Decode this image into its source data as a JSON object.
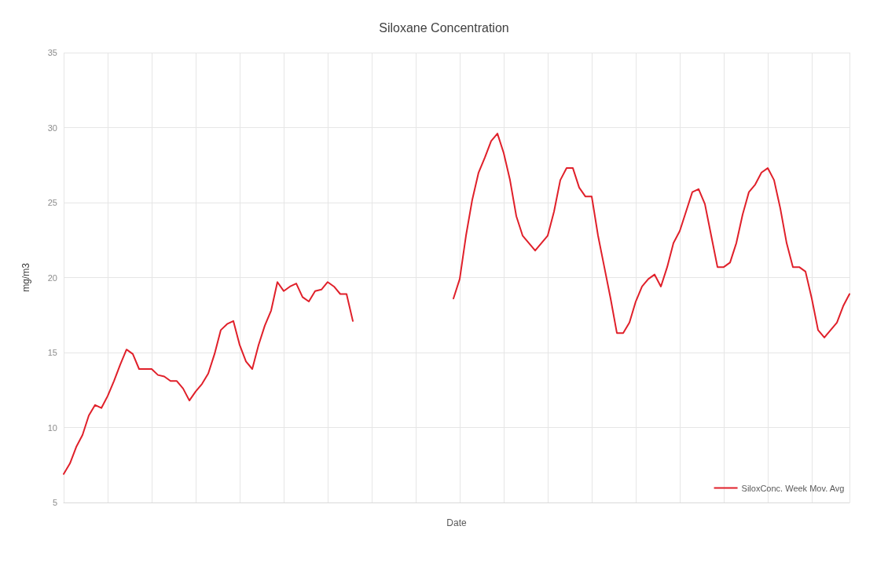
{
  "chart_data": {
    "type": "line",
    "title": "Siloxane Concentration",
    "xlabel": "Date",
    "ylabel": "mg/m3",
    "categories": [
      null,
      null,
      null,
      null,
      null,
      null,
      null,
      null,
      null,
      null,
      null,
      null,
      null,
      null,
      null,
      null,
      null,
      null,
      null,
      null,
      null,
      null,
      null,
      null,
      null,
      null,
      null,
      null,
      null,
      null,
      null,
      null,
      null,
      null,
      null,
      null,
      null,
      null,
      null,
      null,
      null,
      null,
      null,
      null,
      null,
      null,
      null,
      null,
      null,
      null,
      null,
      null,
      null,
      null,
      null,
      null,
      null,
      null,
      null,
      null,
      null,
      null,
      null,
      null,
      null,
      null,
      null,
      null,
      null,
      null,
      null,
      null,
      null,
      null,
      null,
      null,
      null,
      null,
      null,
      null,
      null,
      null,
      null,
      null,
      null,
      null,
      null,
      null,
      null,
      null,
      null,
      null,
      null,
      null,
      null,
      null,
      null,
      null,
      null,
      null,
      null,
      null,
      null,
      null,
      null,
      null,
      null,
      null,
      null,
      null,
      null,
      null,
      null,
      null,
      null,
      null,
      null,
      null,
      null,
      null,
      null,
      null,
      null,
      null,
      null,
      null
    ],
    "series": [
      {
        "color": "#e0202a",
        "values": [
          6.9,
          7.6,
          8.7,
          9.5,
          10.8,
          11.5,
          11.3,
          12.1,
          13.1,
          14.2,
          15.2,
          14.9,
          13.9,
          13.9,
          13.9,
          13.5,
          13.4,
          13.1,
          13.1,
          12.6,
          11.8,
          12.4,
          12.9,
          13.6,
          14.9,
          16.5,
          16.9,
          17.1,
          15.5,
          14.4,
          13.9,
          15.5,
          16.8,
          17.8,
          19.7,
          19.1,
          19.4,
          19.6,
          18.7,
          18.4,
          19.1,
          19.2,
          19.7,
          19.4,
          18.9,
          18.9,
          17.1,
          null,
          null,
          null,
          null,
          null,
          null,
          null,
          null,
          null,
          null,
          null,
          null,
          null,
          null,
          null,
          null,
          null,
          null,
          null,
          null,
          null,
          null,
          null,
          null,
          null,
          null,
          null,
          null,
          null,
          null,
          null,
          null,
          null,
          null,
          null,
          null,
          null,
          null,
          null,
          null,
          null,
          null,
          null,
          null,
          null,
          null,
          null,
          null,
          null,
          null,
          null,
          null,
          null,
          null,
          null,
          null,
          null,
          null,
          null,
          null,
          null,
          null,
          null,
          null,
          null,
          null,
          null,
          null,
          null,
          null,
          null,
          null,
          null,
          null,
          null,
          null,
          null,
          null,
          null
        ]
      },
      {
        "name": "SiloxConc. Week Mov. Avg",
        "color": "#e0202a",
        "values": [
          null,
          null,
          null,
          null,
          null,
          null,
          null,
          null,
          null,
          null,
          null,
          null,
          null,
          null,
          null,
          null,
          null,
          null,
          null,
          null,
          null,
          null,
          null,
          null,
          null,
          null,
          null,
          null,
          null,
          null,
          null,
          null,
          null,
          null,
          null,
          null,
          null,
          null,
          null,
          null,
          null,
          null,
          null,
          null,
          null,
          null,
          null,
          null,
          null,
          null,
          null,
          null,
          null,
          null,
          null,
          null,
          null,
          null,
          null,
          null,
          null,
          null,
          18.6,
          19.9,
          22.8,
          25.2,
          27.0,
          28.0,
          29.1,
          29.6,
          28.3,
          26.5,
          24.1,
          22.8,
          22.3,
          21.8,
          22.3,
          22.8,
          24.4,
          26.5,
          27.3,
          27.3,
          26.0,
          25.4,
          25.4,
          22.8,
          20.7,
          18.6,
          16.3,
          16.3,
          17.0,
          18.4,
          19.4,
          19.9,
          20.2,
          19.4,
          20.7,
          22.3,
          23.1,
          24.4,
          25.7,
          25.9,
          24.9,
          22.8,
          20.7,
          20.7,
          21.0,
          22.3,
          24.2,
          25.7,
          26.2,
          27.0,
          27.3,
          26.5,
          24.6,
          22.3,
          20.7,
          20.7,
          20.4,
          18.6,
          16.5,
          16.0,
          16.5,
          17.0,
          18.1,
          18.9
        ]
      }
    ],
    "ylim": [
      5,
      35
    ],
    "yticks": [
      5,
      10,
      15,
      20,
      25,
      30,
      35
    ],
    "grid": true,
    "legend": "bottom right",
    "marker": "none",
    "line_style": "solid"
  }
}
